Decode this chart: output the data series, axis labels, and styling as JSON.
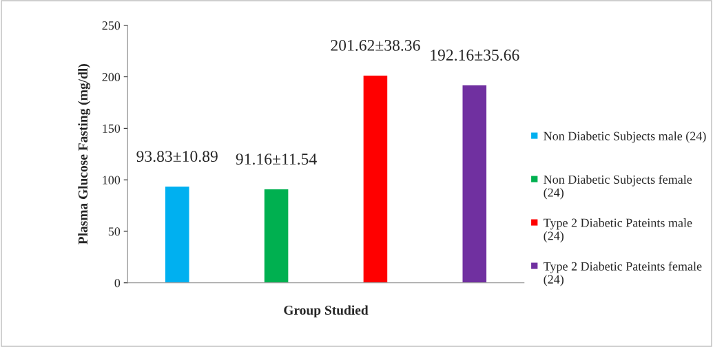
{
  "chart_data": {
    "type": "bar",
    "xlabel": "Group Studied",
    "ylabel": "Plasma Glucose Fasting (mg/dl)",
    "categories": [
      null,
      null,
      null,
      null
    ],
    "series": [
      {
        "name": "Non Diabetic Subjects male (24)",
        "color": "#00b0f0",
        "values": [
          93.83,
          null,
          null,
          null
        ],
        "value_labels": [
          "93.83±10.89",
          null,
          null,
          null
        ]
      },
      {
        "name": "Non Diabetic Subjects female (24)",
        "color": "#00b050",
        "values": [
          null,
          91.16,
          null,
          null
        ],
        "value_labels": [
          null,
          "91.16±11.54",
          null,
          null
        ]
      },
      {
        "name": "Type 2 Diabetic Pateints male (24)",
        "color": "#ff0000",
        "values": [
          null,
          null,
          201.62,
          null
        ],
        "value_labels": [
          null,
          null,
          "201.62±38.36",
          null
        ]
      },
      {
        "name": "Type 2 Diabetic Pateints female (24)",
        "color": "#7030a0",
        "values": [
          null,
          null,
          null,
          192.16
        ],
        "value_labels": [
          null,
          null,
          null,
          "192.16±35.66"
        ]
      }
    ],
    "ylim": [
      0,
      250
    ],
    "yticks": [
      0,
      50,
      100,
      150,
      200,
      250
    ],
    "grid": false,
    "legend": "right"
  }
}
